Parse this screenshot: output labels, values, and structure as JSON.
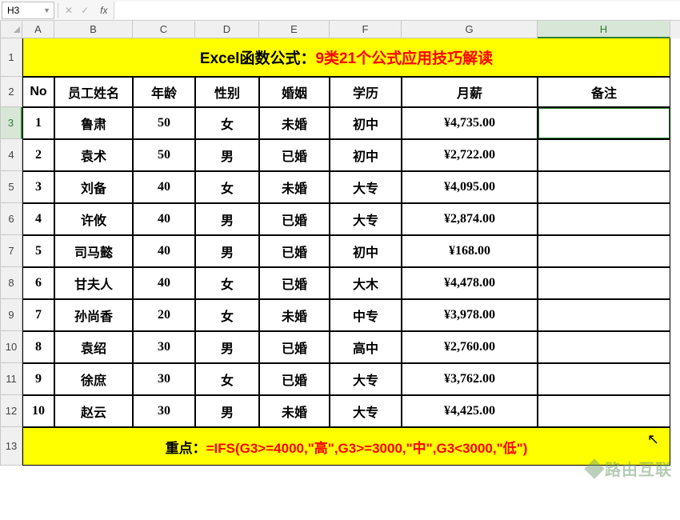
{
  "namebox": {
    "value": "H3"
  },
  "fx_buttons": {
    "cancel": "✕",
    "confirm": "✓",
    "fx": "fx"
  },
  "columns": [
    "A",
    "B",
    "C",
    "D",
    "E",
    "F",
    "G",
    "H"
  ],
  "col_widths": [
    "wA",
    "wB",
    "wC",
    "wD",
    "wE",
    "wF",
    "wG",
    "wH"
  ],
  "selected_col": "H",
  "selected_row": "3",
  "row_labels": [
    "1",
    "2",
    "3",
    "4",
    "5",
    "6",
    "7",
    "8",
    "9",
    "10",
    "11",
    "12",
    "13"
  ],
  "title": {
    "part1": "Excel函数公式：",
    "part2": "9类21个公式应用技巧解读"
  },
  "headers": [
    "No",
    "员工姓名",
    "年龄",
    "性别",
    "婚姻",
    "学历",
    "月薪",
    "备注"
  ],
  "rows": [
    [
      "1",
      "鲁肃",
      "50",
      "女",
      "未婚",
      "初中",
      "¥4,735.00",
      ""
    ],
    [
      "2",
      "袁术",
      "50",
      "男",
      "已婚",
      "初中",
      "¥2,722.00",
      ""
    ],
    [
      "3",
      "刘备",
      "40",
      "女",
      "未婚",
      "大专",
      "¥4,095.00",
      ""
    ],
    [
      "4",
      "许攸",
      "40",
      "男",
      "已婚",
      "大专",
      "¥2,874.00",
      ""
    ],
    [
      "5",
      "司马懿",
      "40",
      "男",
      "已婚",
      "初中",
      "¥168.00",
      ""
    ],
    [
      "6",
      "甘夫人",
      "40",
      "女",
      "已婚",
      "大木",
      "¥4,478.00",
      ""
    ],
    [
      "7",
      "孙尚香",
      "20",
      "女",
      "未婚",
      "中专",
      "¥3,978.00",
      ""
    ],
    [
      "8",
      "袁绍",
      "30",
      "男",
      "已婚",
      "高中",
      "¥2,760.00",
      ""
    ],
    [
      "9",
      "徐庶",
      "30",
      "女",
      "已婚",
      "大专",
      "¥3,762.00",
      ""
    ],
    [
      "10",
      "赵云",
      "30",
      "男",
      "未婚",
      "大专",
      "¥4,425.00",
      ""
    ]
  ],
  "bottom": {
    "label": "重点：",
    "formula": "=IFS(G3>=4000,\"高\",G3>=3000,\"中\",G3<3000,\"低\")"
  },
  "highlight_bg": "#ffff00",
  "title_text_color": "#ff0000",
  "border_color": "#000000",
  "selection_color": "#2f7d32",
  "watermark": "路由互联"
}
